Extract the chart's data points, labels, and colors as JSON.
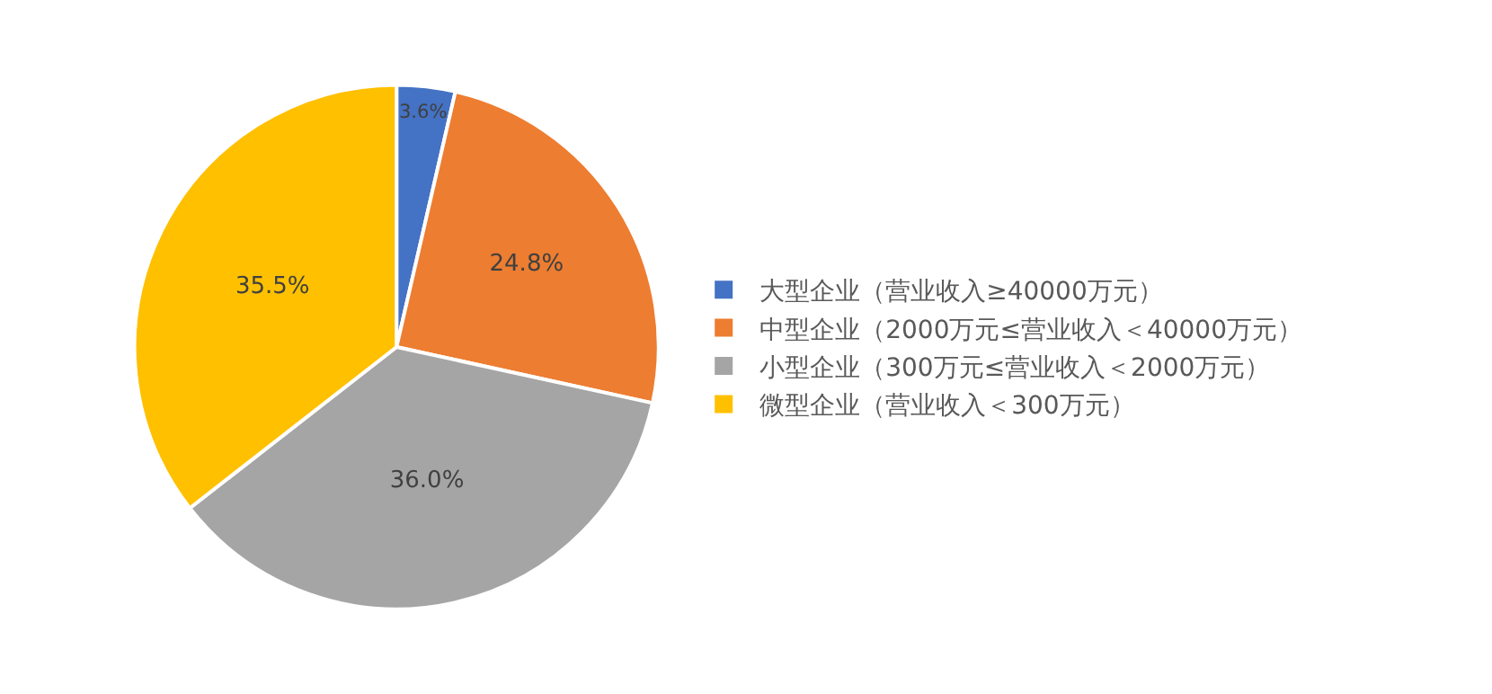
{
  "chart_data": {
    "type": "pie",
    "categories": [
      "大型企业（营业收入≥40000万元）",
      "中型企业（2000万元≤营业收入＜40000万元）",
      "小型企业（300万元≤营业收入＜2000万元）",
      "微型企业（营业收入＜300万元）"
    ],
    "values": [
      3.6,
      24.8,
      36.0,
      35.5
    ],
    "value_labels": [
      "3.6%",
      "24.8%",
      "36.0%",
      "35.5%"
    ],
    "colors": [
      "#4472c4",
      "#ed7d31",
      "#a5a5a5",
      "#ffc000"
    ],
    "legend": "right"
  }
}
